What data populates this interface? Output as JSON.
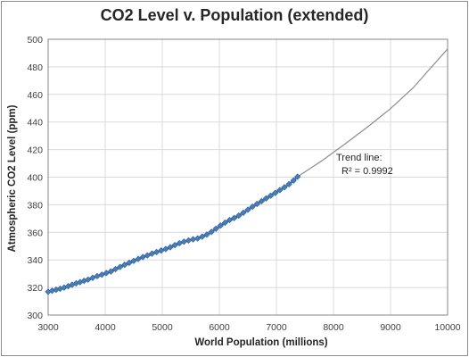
{
  "chart_data": {
    "type": "scatter",
    "title": "CO2 Level v. Population (extended)",
    "xlabel": "World Population  (millions)",
    "ylabel": "Atmospheric CO2 Level  (ppm)",
    "xlim": [
      3000,
      10000
    ],
    "ylim": [
      300,
      500
    ],
    "xticks": [
      3000,
      4000,
      5000,
      6000,
      7000,
      8000,
      9000,
      10000
    ],
    "yticks": [
      300,
      320,
      340,
      360,
      380,
      400,
      420,
      440,
      460,
      480,
      500
    ],
    "grid": true,
    "series": [
      {
        "marker": "diamond",
        "color": "#4a7ebb",
        "x": [
          3000,
          3070,
          3140,
          3210,
          3280,
          3350,
          3420,
          3490,
          3560,
          3630,
          3700,
          3780,
          3860,
          3940,
          4020,
          4100,
          4180,
          4260,
          4340,
          4420,
          4500,
          4580,
          4660,
          4740,
          4820,
          4900,
          4980,
          5060,
          5140,
          5220,
          5300,
          5380,
          5460,
          5540,
          5620,
          5700,
          5780,
          5860,
          5940,
          6020,
          6100,
          6180,
          6260,
          6340,
          6420,
          6500,
          6580,
          6660,
          6740,
          6820,
          6900,
          6980,
          7060,
          7140,
          7220,
          7300,
          7370
        ],
        "y": [
          316.9,
          317.6,
          318.4,
          319.1,
          319.9,
          320.9,
          322.0,
          323.0,
          323.9,
          324.8,
          325.7,
          327.0,
          328.2,
          329.3,
          330.5,
          331.6,
          333.3,
          334.9,
          336.4,
          337.9,
          339.3,
          340.7,
          342.1,
          343.3,
          344.6,
          345.7,
          346.8,
          347.9,
          349.2,
          350.7,
          352.1,
          353.2,
          354.1,
          354.9,
          355.6,
          356.9,
          358.3,
          360.3,
          362.6,
          364.9,
          367.0,
          368.9,
          370.4,
          372.1,
          374.2,
          376.4,
          378.6,
          380.6,
          382.6,
          384.6,
          386.6,
          388.6,
          390.6,
          392.6,
          394.9,
          397.6,
          400.3
        ]
      }
    ],
    "trend_line": {
      "type": "polynomial",
      "x": [
        7370,
        7800,
        8200,
        8600,
        9000,
        9400,
        9700,
        10000
      ],
      "y": [
        400.3,
        412.0,
        424.0,
        436.5,
        449.7,
        465.0,
        479.0,
        493.0
      ]
    },
    "annotations": [
      "Trend line:",
      "R² = 0.9992"
    ]
  }
}
